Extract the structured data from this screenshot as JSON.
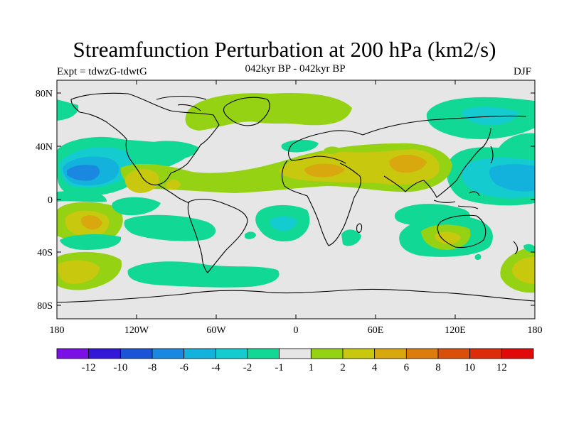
{
  "plot": {
    "title": "Streamfunction Perturbation at 200 hPa (km2/s)",
    "left_label": "Expt = tdwzG-tdwtG",
    "center_label": "042kyr BP - 042kyr BP",
    "right_label": "DJF"
  },
  "axes": {
    "lat_labels": [
      "80N",
      "40N",
      "0",
      "40S",
      "80S"
    ],
    "lon_labels": [
      "180",
      "120W",
      "60W",
      "0",
      "60E",
      "120E",
      "180"
    ]
  },
  "colorbar": {
    "labels": [
      "-12",
      "-10",
      "-8",
      "-6",
      "-4",
      "-2",
      "-1",
      "1",
      "2",
      "4",
      "6",
      "8",
      "10",
      "12"
    ],
    "colors": [
      "#7a10e6",
      "#3418d8",
      "#1a55d6",
      "#1a88e0",
      "#12b2dc",
      "#14ccd0",
      "#12d896",
      "#e6e6e6",
      "#96d214",
      "#c8c80e",
      "#d8a80e",
      "#dc7c0c",
      "#d8500a",
      "#dc2c0a",
      "#e00a0a"
    ]
  },
  "colors": {
    "background": "#e6e6e6",
    "coast": "#000000"
  }
}
